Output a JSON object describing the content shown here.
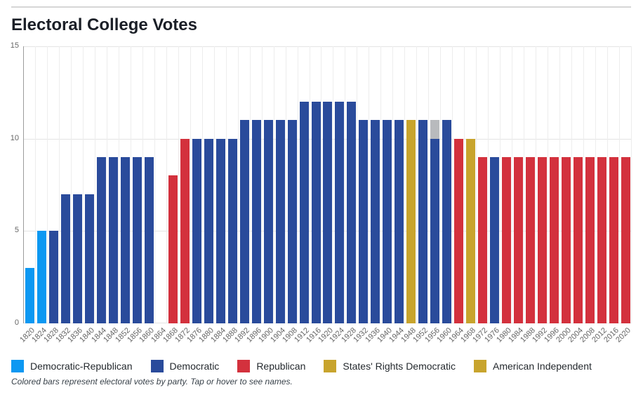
{
  "page": {
    "title": "Electoral College Votes",
    "footnote": "Colored bars represent electoral votes by party. Tap or hover to see names."
  },
  "chart_data": {
    "type": "bar",
    "title": "Electoral College Votes",
    "xlabel": "",
    "ylabel": "",
    "ylim": [
      0,
      15
    ],
    "yticks": [
      0,
      5,
      10,
      15
    ],
    "grid": true,
    "legend_position": "bottom",
    "party_colors": {
      "Democratic-Republican": "#0d98f2",
      "Democratic": "#2a4b9b",
      "Republican": "#d3313d",
      "States' Rights Democratic": "#c8a42d",
      "American Independent": "#c8a42d",
      "Other": "#b8babd"
    },
    "legend": [
      {
        "label": "Democratic-Republican",
        "color": "#0d98f2"
      },
      {
        "label": "Democratic",
        "color": "#2a4b9b"
      },
      {
        "label": "Republican",
        "color": "#d3313d"
      },
      {
        "label": "States' Rights Democratic",
        "color": "#c8a42d"
      },
      {
        "label": "American Independent",
        "color": "#c8a42d"
      }
    ],
    "bars": [
      {
        "year": "1820",
        "segments": [
          {
            "party": "Democratic-Republican",
            "votes": 3
          }
        ]
      },
      {
        "year": "1824",
        "segments": [
          {
            "party": "Democratic-Republican",
            "votes": 5
          }
        ]
      },
      {
        "year": "1828",
        "segments": [
          {
            "party": "Democratic",
            "votes": 5
          }
        ]
      },
      {
        "year": "1832",
        "segments": [
          {
            "party": "Democratic",
            "votes": 7
          }
        ]
      },
      {
        "year": "1836",
        "segments": [
          {
            "party": "Democratic",
            "votes": 7
          }
        ]
      },
      {
        "year": "1840",
        "segments": [
          {
            "party": "Democratic",
            "votes": 7
          }
        ]
      },
      {
        "year": "1844",
        "segments": [
          {
            "party": "Democratic",
            "votes": 9
          }
        ]
      },
      {
        "year": "1848",
        "segments": [
          {
            "party": "Democratic",
            "votes": 9
          }
        ]
      },
      {
        "year": "1852",
        "segments": [
          {
            "party": "Democratic",
            "votes": 9
          }
        ]
      },
      {
        "year": "1856",
        "segments": [
          {
            "party": "Democratic",
            "votes": 9
          }
        ]
      },
      {
        "year": "1860",
        "segments": [
          {
            "party": "Democratic",
            "votes": 9
          }
        ]
      },
      {
        "year": "1864",
        "segments": []
      },
      {
        "year": "1868",
        "segments": [
          {
            "party": "Republican",
            "votes": 8
          }
        ]
      },
      {
        "year": "1872",
        "segments": [
          {
            "party": "Republican",
            "votes": 10
          }
        ]
      },
      {
        "year": "1876",
        "segments": [
          {
            "party": "Democratic",
            "votes": 10
          }
        ]
      },
      {
        "year": "1880",
        "segments": [
          {
            "party": "Democratic",
            "votes": 10
          }
        ]
      },
      {
        "year": "1884",
        "segments": [
          {
            "party": "Democratic",
            "votes": 10
          }
        ]
      },
      {
        "year": "1888",
        "segments": [
          {
            "party": "Democratic",
            "votes": 10
          }
        ]
      },
      {
        "year": "1892",
        "segments": [
          {
            "party": "Democratic",
            "votes": 11
          }
        ]
      },
      {
        "year": "1896",
        "segments": [
          {
            "party": "Democratic",
            "votes": 11
          }
        ]
      },
      {
        "year": "1900",
        "segments": [
          {
            "party": "Democratic",
            "votes": 11
          }
        ]
      },
      {
        "year": "1904",
        "segments": [
          {
            "party": "Democratic",
            "votes": 11
          }
        ]
      },
      {
        "year": "1908",
        "segments": [
          {
            "party": "Democratic",
            "votes": 11
          }
        ]
      },
      {
        "year": "1912",
        "segments": [
          {
            "party": "Democratic",
            "votes": 12
          }
        ]
      },
      {
        "year": "1916",
        "segments": [
          {
            "party": "Democratic",
            "votes": 12
          }
        ]
      },
      {
        "year": "1920",
        "segments": [
          {
            "party": "Democratic",
            "votes": 12
          }
        ]
      },
      {
        "year": "1924",
        "segments": [
          {
            "party": "Democratic",
            "votes": 12
          }
        ]
      },
      {
        "year": "1928",
        "segments": [
          {
            "party": "Democratic",
            "votes": 12
          }
        ]
      },
      {
        "year": "1932",
        "segments": [
          {
            "party": "Democratic",
            "votes": 11
          }
        ]
      },
      {
        "year": "1936",
        "segments": [
          {
            "party": "Democratic",
            "votes": 11
          }
        ]
      },
      {
        "year": "1940",
        "segments": [
          {
            "party": "Democratic",
            "votes": 11
          }
        ]
      },
      {
        "year": "1944",
        "segments": [
          {
            "party": "Democratic",
            "votes": 11
          }
        ]
      },
      {
        "year": "1948",
        "segments": [
          {
            "party": "States' Rights Democratic",
            "votes": 11
          }
        ]
      },
      {
        "year": "1952",
        "segments": [
          {
            "party": "Democratic",
            "votes": 11
          }
        ]
      },
      {
        "year": "1956",
        "segments": [
          {
            "party": "Democratic",
            "votes": 10
          },
          {
            "party": "Other",
            "votes": 1
          }
        ]
      },
      {
        "year": "1960",
        "segments": [
          {
            "party": "Democratic",
            "votes": 11
          }
        ]
      },
      {
        "year": "1964",
        "segments": [
          {
            "party": "Republican",
            "votes": 10
          }
        ]
      },
      {
        "year": "1968",
        "segments": [
          {
            "party": "American Independent",
            "votes": 10
          }
        ]
      },
      {
        "year": "1972",
        "segments": [
          {
            "party": "Republican",
            "votes": 9
          }
        ]
      },
      {
        "year": "1976",
        "segments": [
          {
            "party": "Democratic",
            "votes": 9
          }
        ]
      },
      {
        "year": "1980",
        "segments": [
          {
            "party": "Republican",
            "votes": 9
          }
        ]
      },
      {
        "year": "1984",
        "segments": [
          {
            "party": "Republican",
            "votes": 9
          }
        ]
      },
      {
        "year": "1988",
        "segments": [
          {
            "party": "Republican",
            "votes": 9
          }
        ]
      },
      {
        "year": "1992",
        "segments": [
          {
            "party": "Republican",
            "votes": 9
          }
        ]
      },
      {
        "year": "1996",
        "segments": [
          {
            "party": "Republican",
            "votes": 9
          }
        ]
      },
      {
        "year": "2000",
        "segments": [
          {
            "party": "Republican",
            "votes": 9
          }
        ]
      },
      {
        "year": "2004",
        "segments": [
          {
            "party": "Republican",
            "votes": 9
          }
        ]
      },
      {
        "year": "2008",
        "segments": [
          {
            "party": "Republican",
            "votes": 9
          }
        ]
      },
      {
        "year": "2012",
        "segments": [
          {
            "party": "Republican",
            "votes": 9
          }
        ]
      },
      {
        "year": "2016",
        "segments": [
          {
            "party": "Republican",
            "votes": 9
          }
        ]
      },
      {
        "year": "2020",
        "segments": [
          {
            "party": "Republican",
            "votes": 9
          }
        ]
      }
    ]
  }
}
